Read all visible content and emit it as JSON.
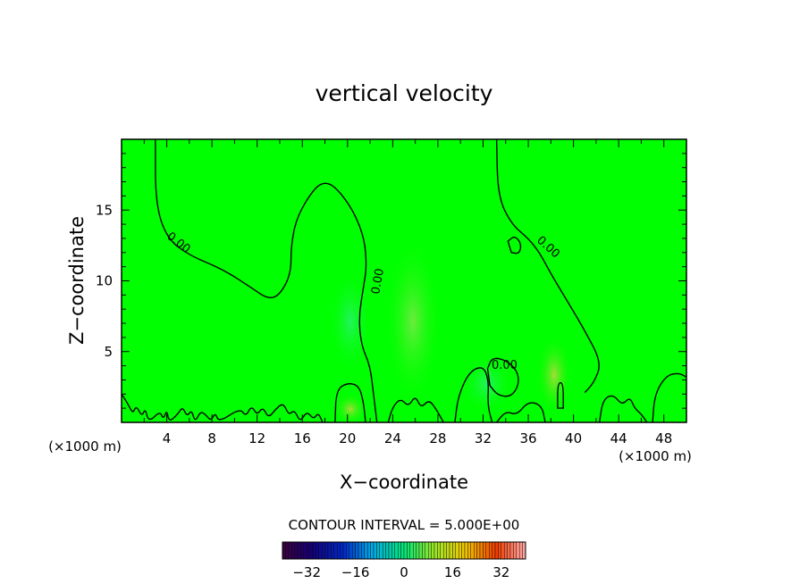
{
  "chart_data": {
    "type": "heatmap",
    "title": "vertical velocity",
    "xlabel": "X−coordinate",
    "ylabel": "Z−coordinate",
    "x_unit_left": "(×1000 m)",
    "x_unit_right": "(×1000 m)",
    "xlim": [
      0,
      50
    ],
    "ylim": [
      0,
      20
    ],
    "x_ticks": [
      4,
      8,
      12,
      16,
      20,
      24,
      28,
      32,
      36,
      40,
      44,
      48
    ],
    "y_ticks": [
      5,
      10,
      15
    ],
    "background_color": "#00ff00",
    "contour_label": "0.00",
    "contour_interval_text": "CONTOUR INTERVAL = 5.000E+00",
    "colorbar": {
      "range": [
        -40,
        40
      ],
      "ticks": [
        -32,
        -16,
        0,
        16,
        32
      ],
      "tick_labels": [
        "−32",
        "−16",
        "0",
        "16",
        "32"
      ]
    },
    "contours": [
      {
        "name": "left-zero-contour",
        "points": [
          [
            3,
            20
          ],
          [
            3,
            15.5
          ],
          [
            4,
            13
          ],
          [
            6,
            11.8
          ],
          [
            9,
            10.8
          ],
          [
            11.5,
            9.5
          ],
          [
            13,
            8.7
          ],
          [
            14,
            9
          ],
          [
            15,
            10.5
          ],
          [
            15,
            12.5
          ],
          [
            15.5,
            14.5
          ],
          [
            17,
            16.5
          ],
          [
            18,
            17
          ],
          [
            19,
            16.6
          ],
          [
            20.5,
            15
          ],
          [
            21.5,
            13
          ],
          [
            21.7,
            11
          ],
          [
            21.4,
            9.5
          ],
          [
            21,
            7.5
          ],
          [
            21.2,
            5.5
          ],
          [
            22,
            4
          ],
          [
            22.3,
            2
          ],
          [
            22.6,
            0
          ]
        ]
      },
      {
        "name": "right-zero-contour",
        "points": [
          [
            33.2,
            20
          ],
          [
            33.3,
            16
          ],
          [
            34.5,
            14
          ],
          [
            36,
            13
          ],
          [
            37,
            12
          ],
          [
            38,
            10.5
          ],
          [
            39.5,
            8.5
          ],
          [
            41,
            6.5
          ],
          [
            42.5,
            4.2
          ],
          [
            41.8,
            2.8
          ],
          [
            41,
            2.1
          ]
        ]
      },
      {
        "name": "upper-right-closed-contour",
        "closed": true,
        "points": [
          [
            34.2,
            12.8
          ],
          [
            34.8,
            13.2
          ],
          [
            35.4,
            12.6
          ],
          [
            35.2,
            11.9
          ],
          [
            34.5,
            12
          ]
        ]
      },
      {
        "name": "mid-right-closed-contour",
        "closed": true,
        "points": [
          [
            32.4,
            3.8
          ],
          [
            32.8,
            4.6
          ],
          [
            34,
            4.4
          ],
          [
            35,
            3.7
          ],
          [
            35.2,
            2.7
          ],
          [
            34.5,
            1.8
          ],
          [
            33.3,
            1.9
          ],
          [
            32.6,
            2.6
          ]
        ]
      },
      {
        "name": "cell-contour-20",
        "points": [
          [
            18.9,
            0
          ],
          [
            19,
            2.3
          ],
          [
            20,
            2.8
          ],
          [
            21,
            2.6
          ],
          [
            21.4,
            1.5
          ],
          [
            21.6,
            0
          ]
        ]
      },
      {
        "name": "cell-contour-30",
        "points": [
          [
            29.5,
            0
          ],
          [
            29.8,
            1.9
          ],
          [
            30.8,
            3.6
          ],
          [
            32,
            4
          ],
          [
            32.5,
            3
          ],
          [
            32.4,
            1.2
          ],
          [
            32.8,
            0
          ]
        ]
      },
      {
        "name": "thin-cell-contour-39",
        "closed": true,
        "points": [
          [
            38.6,
            1
          ],
          [
            38.6,
            2.8
          ],
          [
            39.1,
            2.8
          ],
          [
            39.1,
            1
          ]
        ]
      },
      {
        "name": "far-right-contour",
        "points": [
          [
            47,
            0
          ],
          [
            47.2,
            2
          ],
          [
            48.2,
            3.3
          ],
          [
            49.3,
            3.5
          ],
          [
            50,
            3.2
          ]
        ]
      },
      {
        "name": "ground-contour-left",
        "points": [
          [
            0,
            2
          ],
          [
            0.5,
            1.4
          ],
          [
            1,
            0.6
          ],
          [
            1.3,
            1.2
          ],
          [
            1.8,
            0.4
          ],
          [
            2.1,
            1
          ],
          [
            2.4,
            0
          ],
          [
            3.4,
            0.8
          ],
          [
            3.7,
            0.2
          ],
          [
            4,
            0.9
          ],
          [
            4.2,
            0
          ],
          [
            5,
            0.6
          ],
          [
            5.4,
            1.1
          ],
          [
            5.8,
            0.4
          ],
          [
            6.2,
            0.9
          ],
          [
            6.5,
            0
          ],
          [
            7,
            0.8
          ],
          [
            7.5,
            0.5
          ],
          [
            7.9,
            0.1
          ],
          [
            8.3,
            0.7
          ],
          [
            8.6,
            0
          ],
          [
            10.5,
            1
          ],
          [
            11,
            0.4
          ],
          [
            11.5,
            1.2
          ],
          [
            12,
            0.5
          ],
          [
            12.5,
            1.1
          ],
          [
            13,
            0.3
          ],
          [
            13.6,
            0.9
          ],
          [
            14.3,
            1.4
          ],
          [
            14.8,
            0.5
          ],
          [
            15.3,
            0.9
          ],
          [
            15.8,
            0
          ],
          [
            16.4,
            0.8
          ],
          [
            17,
            0.2
          ],
          [
            17.4,
            0.7
          ],
          [
            17.8,
            0
          ]
        ]
      },
      {
        "name": "ground-contour-mid",
        "points": [
          [
            23.6,
            0
          ],
          [
            24,
            1.1
          ],
          [
            24.7,
            1.7
          ],
          [
            25.4,
            1.1
          ],
          [
            26,
            1.9
          ],
          [
            26.5,
            1
          ],
          [
            27.2,
            1.6
          ],
          [
            27.8,
            1
          ],
          [
            28.5,
            0
          ]
        ]
      },
      {
        "name": "ground-contour-right",
        "points": [
          [
            33.2,
            0
          ],
          [
            34,
            0.8
          ],
          [
            35,
            0.5
          ],
          [
            36,
            1.5
          ],
          [
            37.2,
            1.2
          ],
          [
            37.5,
            0
          ]
        ]
      },
      {
        "name": "ground-contour-far-right",
        "points": [
          [
            42.3,
            0
          ],
          [
            42.6,
            1.6
          ],
          [
            43.5,
            2
          ],
          [
            44.3,
            1.2
          ],
          [
            45,
            1.8
          ],
          [
            45.4,
            1
          ],
          [
            46,
            0.6
          ],
          [
            46.5,
            0
          ]
        ]
      }
    ]
  }
}
